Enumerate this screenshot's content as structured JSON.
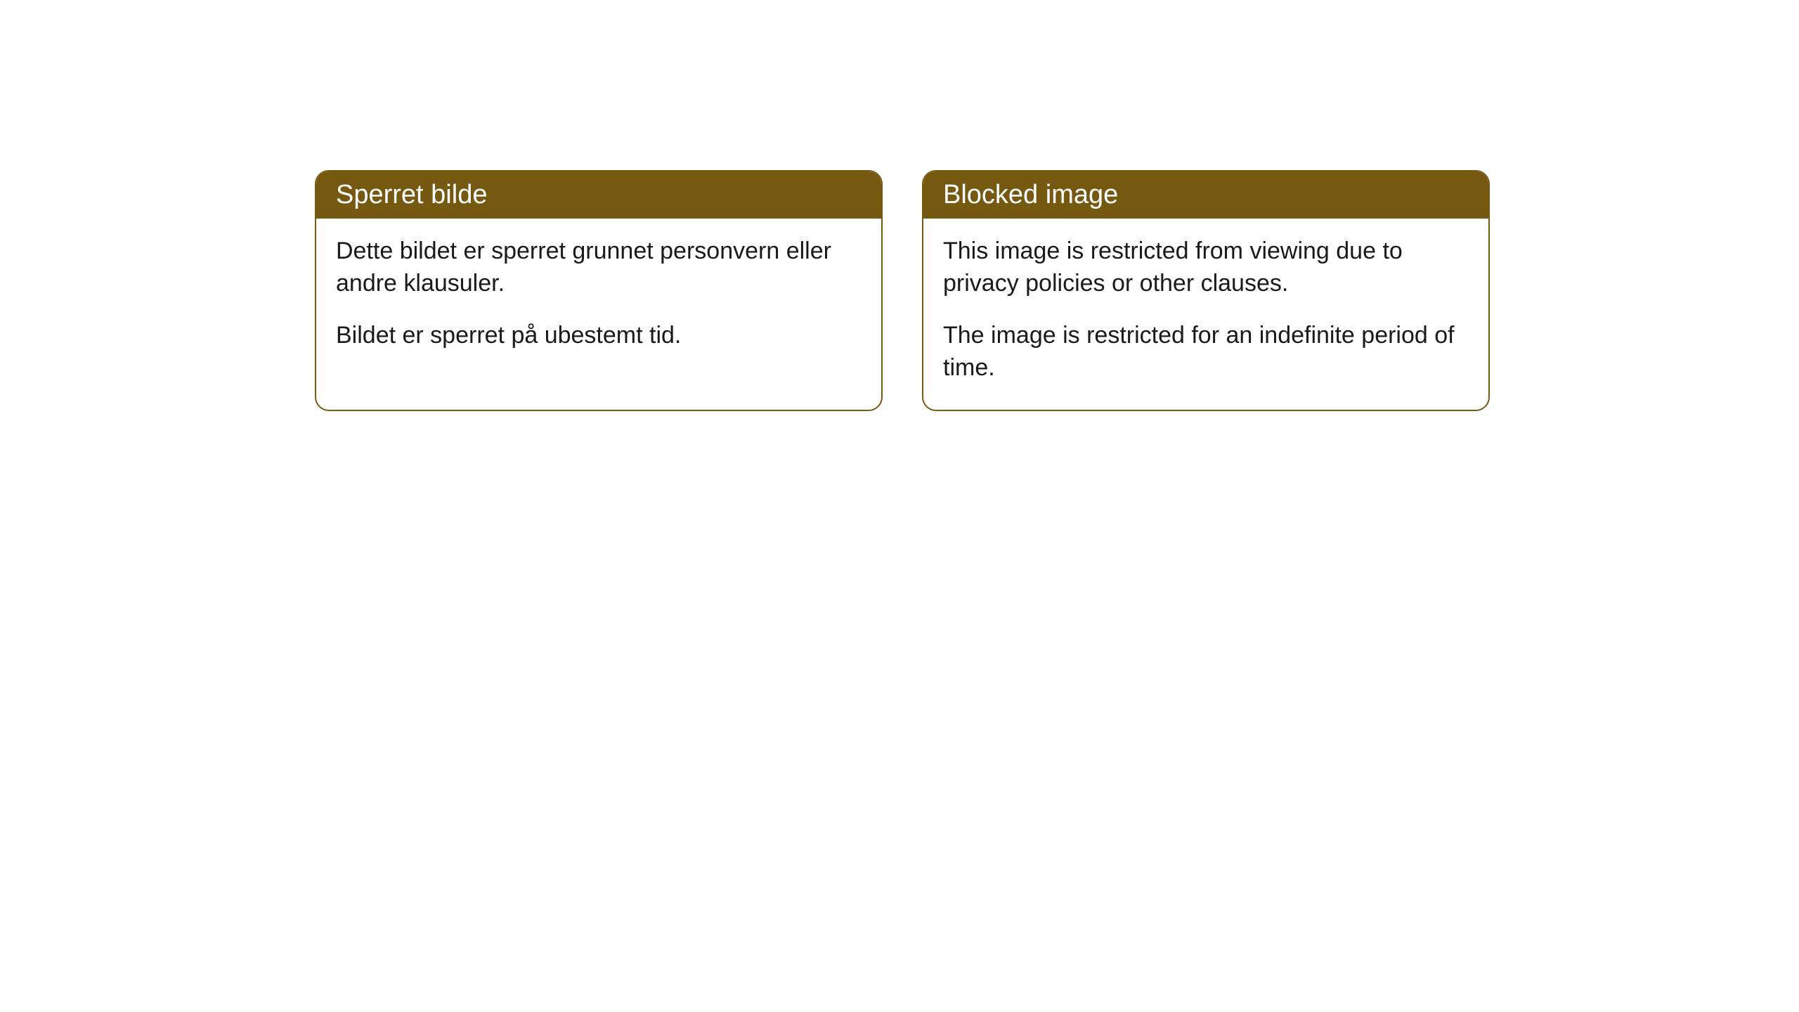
{
  "cards": [
    {
      "title": "Sperret bilde",
      "paragraph1": "Dette bildet er sperret grunnet personvern eller andre klausuler.",
      "paragraph2": "Bildet er sperret på ubestemt tid."
    },
    {
      "title": "Blocked image",
      "paragraph1": "This image is restricted from viewing due to privacy policies or other clauses.",
      "paragraph2": "The image is restricted for an indefinite period of time."
    }
  ],
  "style": {
    "header_bg_color": "#755911",
    "header_text_color": "#ffffff",
    "border_color": "#755911",
    "body_bg_color": "#ffffff",
    "body_text_color": "#1a1a1a",
    "border_radius": 20,
    "header_fontsize": 38,
    "body_fontsize": 34
  }
}
